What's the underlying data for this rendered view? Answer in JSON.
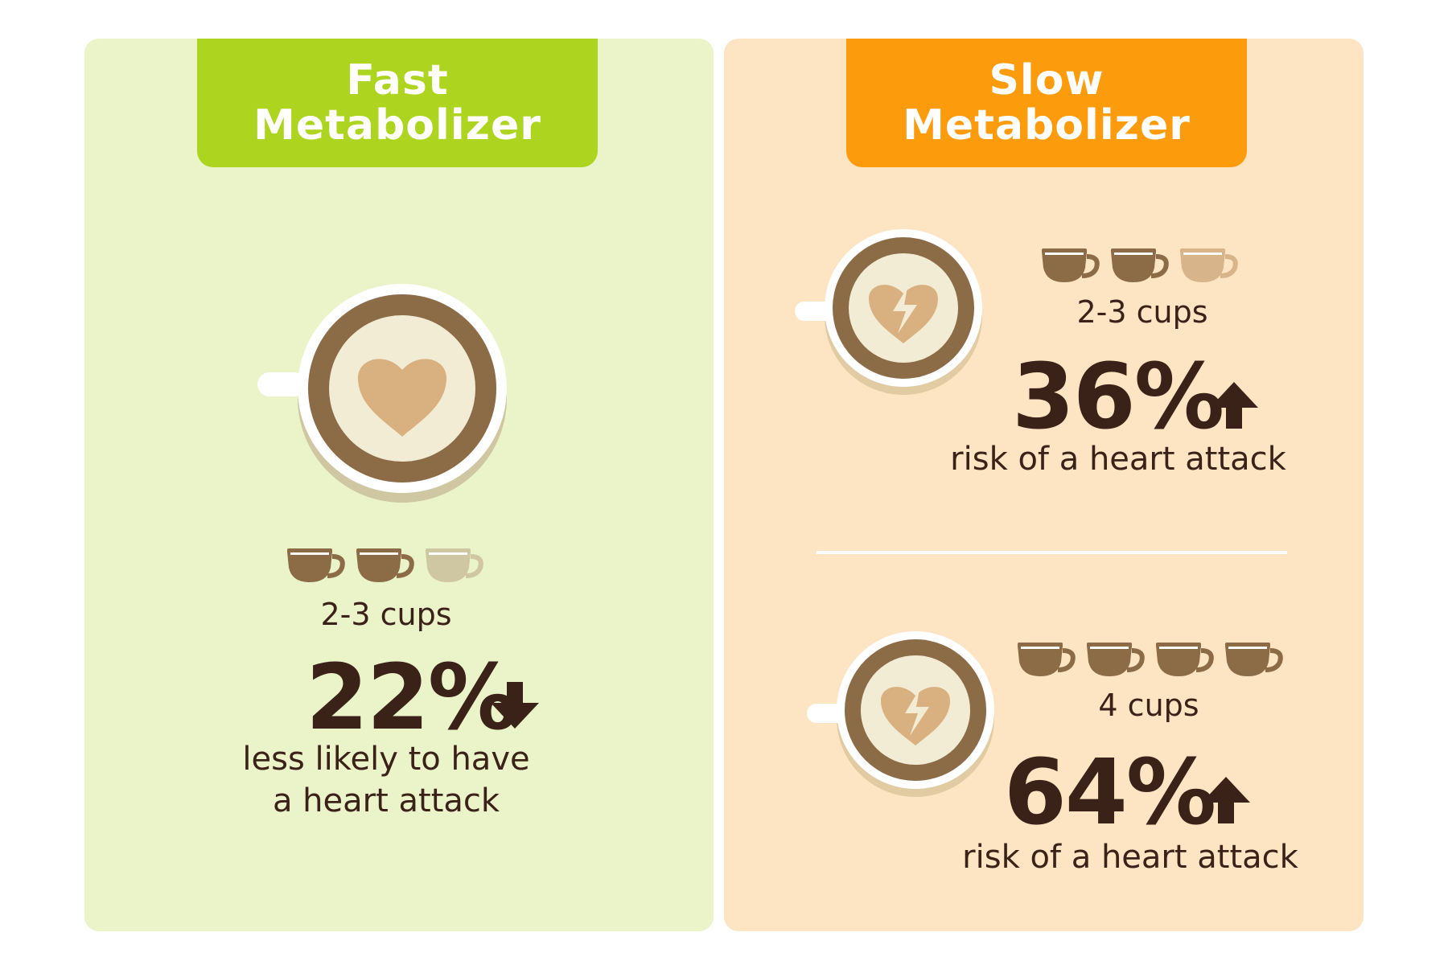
{
  "colors": {
    "fast_accent": "#add51f",
    "slow_accent": "#fc9c0c",
    "fast_bg": "#ebf3c9",
    "slow_bg": "#fde4c3",
    "dark_brown": "#3a2218",
    "coffee": "#8c6b47",
    "foam": "#f2ecd4",
    "heart": "#d9b07f"
  },
  "fast": {
    "title_line1": "Fast",
    "title_line2": "Metabolizer",
    "cup_icon": "coffee-cup-heart-icon",
    "cups_total": 3,
    "cups_filled": 2,
    "cups_label": "2-3 cups",
    "percent": "22%",
    "direction_icon": "arrow-down-icon",
    "description_line1": "less likely to have",
    "description_line2": "a heart attack"
  },
  "slow": {
    "title_line1": "Slow",
    "title_line2": "Metabolizer",
    "case1": {
      "cup_icon": "coffee-cup-broken-heart-icon",
      "cups_total": 3,
      "cups_filled": 2,
      "cups_label": "2-3 cups",
      "percent": "36%",
      "direction_icon": "arrow-up-icon",
      "description": "risk of a heart attack"
    },
    "case2": {
      "cup_icon": "coffee-cup-broken-heart-icon",
      "cups_total": 4,
      "cups_filled": 4,
      "cups_label": "4 cups",
      "percent": "64%",
      "direction_icon": "arrow-up-icon",
      "description": "risk of a heart attack"
    }
  }
}
